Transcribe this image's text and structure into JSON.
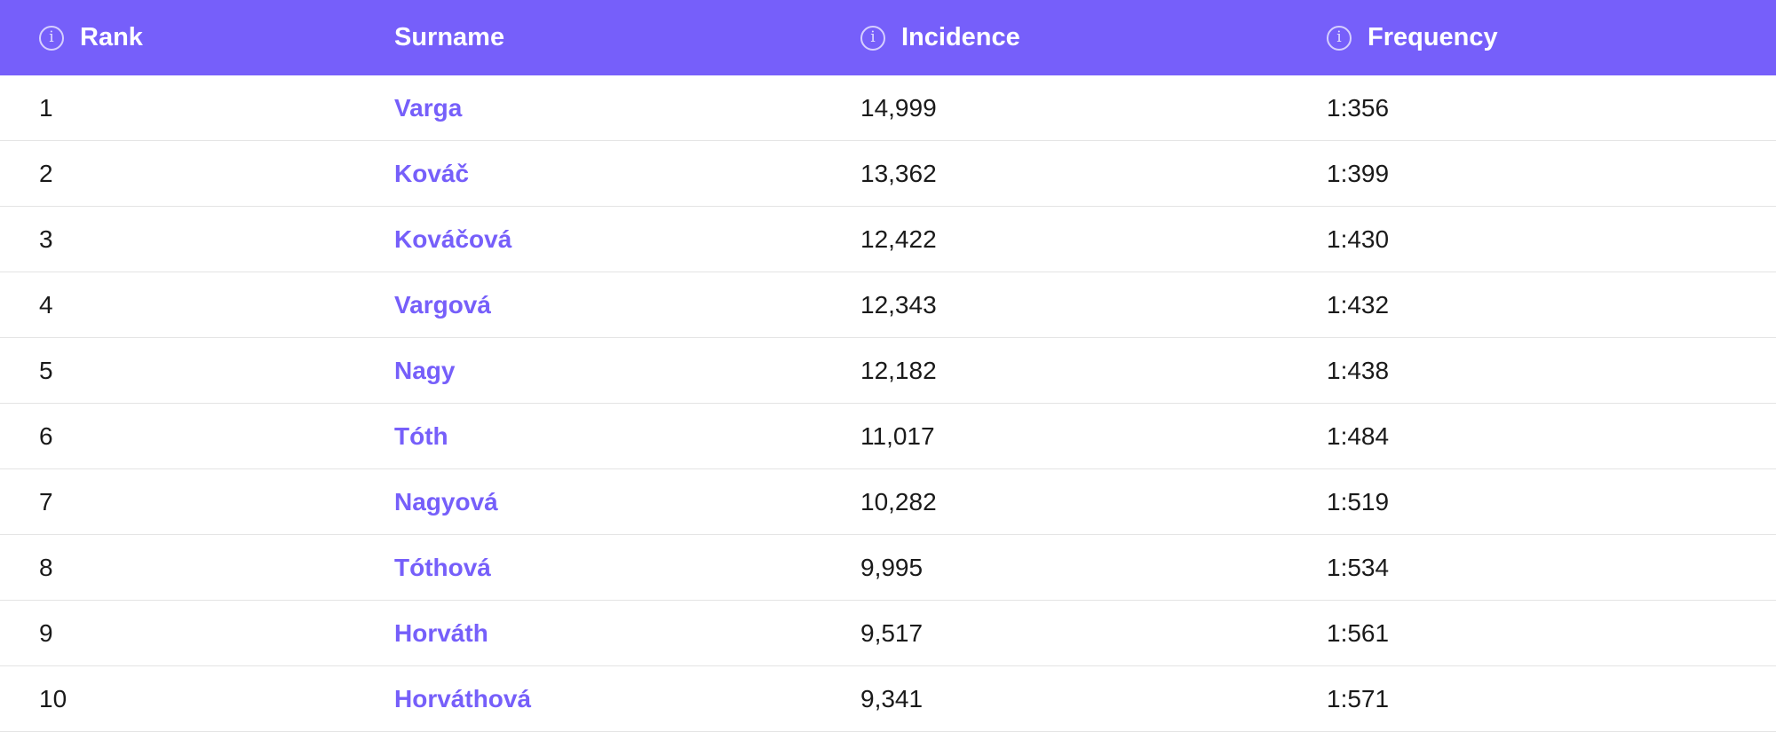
{
  "colors": {
    "header_background": "#765ffa",
    "link": "#765ffa",
    "text": "#1a1a1a",
    "divider": "#e4e4e4"
  },
  "header": {
    "rank": "Rank",
    "surname": "Surname",
    "incidence": "Incidence",
    "frequency": "Frequency",
    "info_icon_glyph": "i"
  },
  "rows": [
    {
      "rank": "1",
      "surname": "Varga",
      "incidence": "14,999",
      "frequency": "1:356"
    },
    {
      "rank": "2",
      "surname": "Kováč",
      "incidence": "13,362",
      "frequency": "1:399"
    },
    {
      "rank": "3",
      "surname": "Kováčová",
      "incidence": "12,422",
      "frequency": "1:430"
    },
    {
      "rank": "4",
      "surname": "Vargová",
      "incidence": "12,343",
      "frequency": "1:432"
    },
    {
      "rank": "5",
      "surname": "Nagy",
      "incidence": "12,182",
      "frequency": "1:438"
    },
    {
      "rank": "6",
      "surname": "Tóth",
      "incidence": "11,017",
      "frequency": "1:484"
    },
    {
      "rank": "7",
      "surname": "Nagyová",
      "incidence": "10,282",
      "frequency": "1:519"
    },
    {
      "rank": "8",
      "surname": "Tóthová",
      "incidence": "9,995",
      "frequency": "1:534"
    },
    {
      "rank": "9",
      "surname": "Horváth",
      "incidence": "9,517",
      "frequency": "1:561"
    },
    {
      "rank": "10",
      "surname": "Horváthová",
      "incidence": "9,341",
      "frequency": "1:571"
    }
  ]
}
